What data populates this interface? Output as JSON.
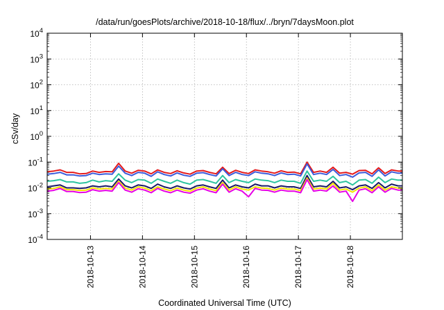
{
  "chart_data": {
    "type": "line",
    "title": "/data/run/goesPlots/archive/2018-10-18/flux/../bryn/7daysMoon.plot",
    "xlabel": "Coordinated Universal Time (UTC)",
    "ylabel": "cSv/day",
    "yscale": "log",
    "ylim": [
      0.0001,
      10000
    ],
    "xlim": [
      "2018-10-12 04:00",
      "2018-10-19 00:00"
    ],
    "grid": true,
    "y_ticks": [
      {
        "base": "10",
        "exp": "-4",
        "value": 0.0001
      },
      {
        "base": "10",
        "exp": "-3",
        "value": 0.001
      },
      {
        "base": "10",
        "exp": "-2",
        "value": 0.01
      },
      {
        "base": "10",
        "exp": "-1",
        "value": 0.1
      },
      {
        "base": "10",
        "exp": "0",
        "value": 1
      },
      {
        "base": "10",
        "exp": "1",
        "value": 10
      },
      {
        "base": "10",
        "exp": "2",
        "value": 100
      },
      {
        "base": "10",
        "exp": "3",
        "value": 1000
      },
      {
        "base": "10",
        "exp": "4",
        "value": 10000
      }
    ],
    "x_ticks": [
      "2018-10-13",
      "2018-10-14",
      "2018-10-15",
      "2018-10-16",
      "2018-10-17",
      "2018-10-18"
    ],
    "x": [
      "2018-10-12 04:00",
      "2018-10-12 07:00",
      "2018-10-12 10:00",
      "2018-10-12 13:00",
      "2018-10-12 16:00",
      "2018-10-12 19:00",
      "2018-10-12 22:00",
      "2018-10-13 01:00",
      "2018-10-13 04:00",
      "2018-10-13 07:00",
      "2018-10-13 10:00",
      "2018-10-13 13:00",
      "2018-10-13 16:00",
      "2018-10-13 19:00",
      "2018-10-13 22:00",
      "2018-10-14 01:00",
      "2018-10-14 04:00",
      "2018-10-14 07:00",
      "2018-10-14 10:00",
      "2018-10-14 13:00",
      "2018-10-14 16:00",
      "2018-10-14 19:00",
      "2018-10-14 22:00",
      "2018-10-15 01:00",
      "2018-10-15 04:00",
      "2018-10-15 07:00",
      "2018-10-15 10:00",
      "2018-10-15 13:00",
      "2018-10-15 16:00",
      "2018-10-15 19:00",
      "2018-10-15 22:00",
      "2018-10-16 01:00",
      "2018-10-16 04:00",
      "2018-10-16 07:00",
      "2018-10-16 10:00",
      "2018-10-16 13:00",
      "2018-10-16 16:00",
      "2018-10-16 19:00",
      "2018-10-16 22:00",
      "2018-10-17 01:00",
      "2018-10-17 04:00",
      "2018-10-17 07:00",
      "2018-10-17 10:00",
      "2018-10-17 13:00",
      "2018-10-17 16:00",
      "2018-10-17 19:00",
      "2018-10-17 22:00",
      "2018-10-18 01:00",
      "2018-10-18 04:00",
      "2018-10-18 07:00",
      "2018-10-18 10:00",
      "2018-10-18 13:00",
      "2018-10-18 16:00",
      "2018-10-18 19:00",
      "2018-10-18 22:00",
      "2018-10-19 00:00"
    ],
    "series": [
      {
        "color": "#e41a1c",
        "values": [
          0.042,
          0.045,
          0.05,
          0.04,
          0.04,
          0.035,
          0.036,
          0.045,
          0.04,
          0.043,
          0.042,
          0.09,
          0.045,
          0.037,
          0.048,
          0.045,
          0.035,
          0.05,
          0.04,
          0.036,
          0.046,
          0.038,
          0.034,
          0.045,
          0.047,
          0.04,
          0.035,
          0.063,
          0.036,
          0.048,
          0.04,
          0.036,
          0.05,
          0.045,
          0.042,
          0.037,
          0.046,
          0.04,
          0.041,
          0.035,
          0.1,
          0.04,
          0.045,
          0.04,
          0.063,
          0.037,
          0.04,
          0.034,
          0.047,
          0.048,
          0.035,
          0.06,
          0.036,
          0.05,
          0.045,
          0.045
        ]
      },
      {
        "color": "#3b5bdb",
        "values": [
          0.034,
          0.036,
          0.04,
          0.032,
          0.032,
          0.029,
          0.03,
          0.037,
          0.033,
          0.035,
          0.034,
          0.07,
          0.037,
          0.03,
          0.04,
          0.037,
          0.028,
          0.042,
          0.033,
          0.029,
          0.038,
          0.031,
          0.028,
          0.037,
          0.039,
          0.033,
          0.029,
          0.055,
          0.03,
          0.04,
          0.033,
          0.03,
          0.042,
          0.037,
          0.035,
          0.03,
          0.038,
          0.033,
          0.034,
          0.029,
          0.085,
          0.033,
          0.037,
          0.033,
          0.052,
          0.03,
          0.033,
          0.026,
          0.038,
          0.04,
          0.028,
          0.05,
          0.029,
          0.042,
          0.037,
          0.037
        ]
      },
      {
        "color": "#2ec4a0",
        "values": [
          0.018,
          0.019,
          0.021,
          0.017,
          0.017,
          0.015,
          0.016,
          0.02,
          0.017,
          0.019,
          0.018,
          0.035,
          0.02,
          0.016,
          0.021,
          0.02,
          0.015,
          0.022,
          0.018,
          0.015,
          0.02,
          0.016,
          0.014,
          0.02,
          0.021,
          0.018,
          0.015,
          0.03,
          0.016,
          0.021,
          0.018,
          0.016,
          0.022,
          0.02,
          0.019,
          0.016,
          0.02,
          0.018,
          0.018,
          0.015,
          0.045,
          0.018,
          0.02,
          0.018,
          0.028,
          0.016,
          0.018,
          0.013,
          0.02,
          0.021,
          0.015,
          0.026,
          0.016,
          0.022,
          0.02,
          0.02
        ]
      },
      {
        "color": "#1a1a66",
        "values": [
          0.011,
          0.012,
          0.013,
          0.01,
          0.01,
          0.0095,
          0.01,
          0.012,
          0.011,
          0.012,
          0.011,
          0.022,
          0.012,
          0.01,
          0.013,
          0.012,
          0.0095,
          0.014,
          0.011,
          0.0095,
          0.012,
          0.01,
          0.009,
          0.012,
          0.013,
          0.011,
          0.0095,
          0.02,
          0.01,
          0.013,
          0.011,
          0.01,
          0.014,
          0.012,
          0.012,
          0.01,
          0.012,
          0.011,
          0.011,
          0.0095,
          0.03,
          0.011,
          0.012,
          0.011,
          0.018,
          0.01,
          0.011,
          0.0085,
          0.012,
          0.013,
          0.0095,
          0.016,
          0.01,
          0.014,
          0.012,
          0.012
        ]
      },
      {
        "color": "#f5e400",
        "values": [
          0.009,
          0.0095,
          0.011,
          0.0085,
          0.0085,
          0.008,
          0.0082,
          0.01,
          0.009,
          0.0095,
          0.009,
          0.018,
          0.0098,
          0.0082,
          0.011,
          0.0098,
          0.0078,
          0.011,
          0.009,
          0.0078,
          0.0098,
          0.0082,
          0.0074,
          0.0098,
          0.011,
          0.009,
          0.0078,
          0.016,
          0.0082,
          0.011,
          0.009,
          0.0082,
          0.011,
          0.0098,
          0.0095,
          0.0082,
          0.0098,
          0.009,
          0.009,
          0.0078,
          0.024,
          0.009,
          0.0098,
          0.009,
          0.015,
          0.0082,
          0.009,
          0.0068,
          0.0098,
          0.011,
          0.0078,
          0.013,
          0.0082,
          0.011,
          0.0098,
          0.0098
        ]
      },
      {
        "color": "#e600e6",
        "values": [
          0.0075,
          0.008,
          0.0095,
          0.0072,
          0.0072,
          0.0066,
          0.0068,
          0.0085,
          0.0075,
          0.008,
          0.0075,
          0.016,
          0.0082,
          0.0068,
          0.0092,
          0.0082,
          0.0065,
          0.0095,
          0.0075,
          0.0065,
          0.0082,
          0.0068,
          0.0062,
          0.0082,
          0.0092,
          0.0075,
          0.0065,
          0.014,
          0.0068,
          0.0092,
          0.0075,
          0.0045,
          0.0095,
          0.0082,
          0.008,
          0.0068,
          0.0082,
          0.0075,
          0.0075,
          0.0065,
          0.021,
          0.0075,
          0.0082,
          0.0075,
          0.012,
          0.0068,
          0.0075,
          0.003,
          0.0082,
          0.0092,
          0.0065,
          0.011,
          0.0068,
          0.0095,
          0.0082,
          0.0082
        ]
      }
    ]
  }
}
